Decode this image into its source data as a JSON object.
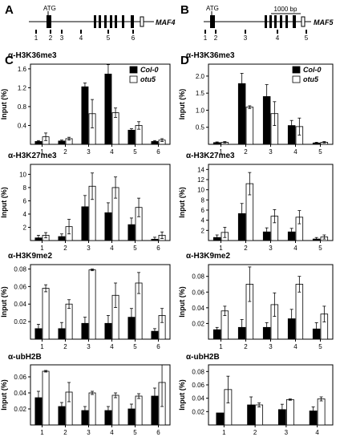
{
  "panel_letters": [
    "A",
    "B",
    "C",
    "D"
  ],
  "genes": [
    {
      "label": "MAF4",
      "atg": "ATG",
      "sites": [
        "1",
        "2",
        "3",
        "4",
        "5",
        "6"
      ]
    },
    {
      "label": "MAF5",
      "atg": "ATG",
      "sites": [
        "1",
        "2",
        "3",
        "4",
        "5"
      ],
      "scale_label": "1000 bp"
    }
  ],
  "colors": {
    "col0": "#000000",
    "otu5": "#ffffff",
    "frame": "#000000"
  },
  "chart_data": [
    {
      "id": "c1",
      "type": "bar",
      "title": "α-H3K36me3",
      "ylabel": "Input (%)",
      "legend": "top-right",
      "categories": [
        "1",
        "2",
        "3",
        "4",
        "5",
        "6"
      ],
      "ylim": [
        0,
        1.7
      ],
      "yticks": [
        "0.4",
        "0.8",
        "1.2",
        "1.6"
      ],
      "series": [
        {
          "name": "Col-0",
          "values": [
            0.06,
            0.07,
            1.22,
            1.49,
            0.3,
            0.06
          ],
          "errors": [
            0.02,
            0.02,
            0.08,
            0.2,
            0.03,
            0.02
          ]
        },
        {
          "name": "otu5",
          "values": [
            0.16,
            0.12,
            0.65,
            0.67,
            0.4,
            0.09
          ],
          "errors": [
            0.08,
            0.03,
            0.3,
            0.1,
            0.08,
            0.03
          ]
        }
      ]
    },
    {
      "id": "c2",
      "type": "bar",
      "title": "α-H3K27me3",
      "ylabel": "Input (%)",
      "legend": "",
      "categories": [
        "1",
        "2",
        "3",
        "4",
        "5",
        "6"
      ],
      "ylim": [
        0,
        11.5
      ],
      "yticks": [
        "2",
        "4",
        "6",
        "8",
        "10"
      ],
      "series": [
        {
          "name": "",
          "values": [
            0.4,
            0.6,
            5.1,
            4.2,
            2.4,
            0.2
          ],
          "errors": [
            0.4,
            0.4,
            1.7,
            1.5,
            1.0,
            0.3
          ]
        },
        {
          "name": "",
          "values": [
            0.8,
            2.1,
            8.2,
            8.0,
            5.0,
            0.8
          ],
          "errors": [
            0.4,
            1.1,
            2.0,
            1.6,
            1.4,
            0.5
          ]
        }
      ]
    },
    {
      "id": "c3",
      "type": "bar",
      "title": "α-H3K9me2",
      "ylabel": "Input (%)",
      "legend": "",
      "categories": [
        "1",
        "2",
        "3",
        "4",
        "5",
        "6"
      ],
      "ylim": [
        0,
        0.085
      ],
      "yticks": [
        "0.02",
        "0.04",
        "0.06",
        "0.08"
      ],
      "series": [
        {
          "name": "",
          "values": [
            0.012,
            0.012,
            0.018,
            0.018,
            0.025,
            0.009
          ],
          "errors": [
            0.005,
            0.007,
            0.007,
            0.009,
            0.01,
            0.003
          ]
        },
        {
          "name": "",
          "values": [
            0.058,
            0.04,
            0.079,
            0.05,
            0.064,
            0.027
          ],
          "errors": [
            0.004,
            0.005,
            0.001,
            0.014,
            0.012,
            0.008
          ]
        }
      ]
    },
    {
      "id": "c4",
      "type": "bar",
      "title": "α-ubH2B",
      "ylabel": "Input (%)",
      "legend": "",
      "categories": [
        "1",
        "2",
        "3",
        "4",
        "5",
        "6"
      ],
      "ylim": [
        0,
        0.075
      ],
      "yticks": [
        "0.02",
        "0.04",
        "0.06"
      ],
      "series": [
        {
          "name": "",
          "values": [
            0.034,
            0.023,
            0.018,
            0.018,
            0.02,
            0.036
          ],
          "errors": [
            0.008,
            0.005,
            0.005,
            0.005,
            0.006,
            0.01
          ]
        },
        {
          "name": "",
          "values": [
            0.067,
            0.041,
            0.04,
            0.037,
            0.036,
            0.053
          ],
          "errors": [
            0.001,
            0.012,
            0.002,
            0.003,
            0.003,
            0.03
          ]
        }
      ]
    },
    {
      "id": "d1",
      "type": "bar",
      "title": "α-H3K36me3",
      "ylabel": "Input (%)",
      "legend": "top-right",
      "categories": [
        "1",
        "2",
        "3",
        "4",
        "5"
      ],
      "ylim": [
        0,
        2.35
      ],
      "yticks": [
        "0.5",
        "1.0",
        "1.5",
        "2.0"
      ],
      "series": [
        {
          "name": "Col-0",
          "values": [
            0.05,
            1.78,
            1.4,
            0.55,
            0.04
          ],
          "errors": [
            0.02,
            0.3,
            0.35,
            0.15,
            0.02
          ]
        },
        {
          "name": "otu5",
          "values": [
            0.06,
            1.09,
            0.9,
            0.52,
            0.06
          ],
          "errors": [
            0.02,
            0.04,
            0.35,
            0.25,
            0.02
          ]
        }
      ]
    },
    {
      "id": "d2",
      "type": "bar",
      "title": "α-H3K27me3",
      "ylabel": "Input (%)",
      "legend": "",
      "categories": [
        "1",
        "2",
        "3",
        "4",
        "5"
      ],
      "ylim": [
        0,
        15
      ],
      "yticks": [
        "2",
        "4",
        "6",
        "8",
        "10",
        "12",
        "14"
      ],
      "series": [
        {
          "name": "",
          "values": [
            0.6,
            5.3,
            1.7,
            1.7,
            0.3
          ],
          "errors": [
            0.5,
            2.0,
            0.8,
            0.7,
            0.3
          ]
        },
        {
          "name": "",
          "values": [
            1.6,
            11.2,
            4.8,
            4.6,
            0.7
          ],
          "errors": [
            1.0,
            2.2,
            1.3,
            1.3,
            0.4
          ]
        }
      ]
    },
    {
      "id": "d3",
      "type": "bar",
      "title": "α-H3K9me2",
      "ylabel": "Input (%)",
      "legend": "",
      "categories": [
        "1",
        "2",
        "3",
        "4",
        "5"
      ],
      "ylim": [
        0,
        0.095
      ],
      "yticks": [
        "0.02",
        "0.04",
        "0.06",
        "0.08"
      ],
      "series": [
        {
          "name": "",
          "values": [
            0.012,
            0.015,
            0.015,
            0.026,
            0.013
          ],
          "errors": [
            0.003,
            0.01,
            0.006,
            0.012,
            0.008
          ]
        },
        {
          "name": "",
          "values": [
            0.036,
            0.07,
            0.044,
            0.07,
            0.032
          ],
          "errors": [
            0.006,
            0.022,
            0.015,
            0.01,
            0.01
          ]
        }
      ]
    },
    {
      "id": "d4",
      "type": "bar",
      "title": "α-ubH2B",
      "ylabel": "Input (%)",
      "legend": "",
      "categories": [
        "1",
        "2",
        "3",
        "4"
      ],
      "ylim": [
        0,
        0.09
      ],
      "yticks": [
        "0.02",
        "0.04",
        "0.06",
        "0.08"
      ],
      "series": [
        {
          "name": "",
          "values": [
            0.018,
            0.03,
            0.023,
            0.021
          ],
          "errors": [
            0.0,
            0.012,
            0.008,
            0.006
          ]
        },
        {
          "name": "",
          "values": [
            0.053,
            0.03,
            0.038,
            0.039
          ],
          "errors": [
            0.02,
            0.003,
            0.001,
            0.003
          ]
        }
      ]
    }
  ]
}
